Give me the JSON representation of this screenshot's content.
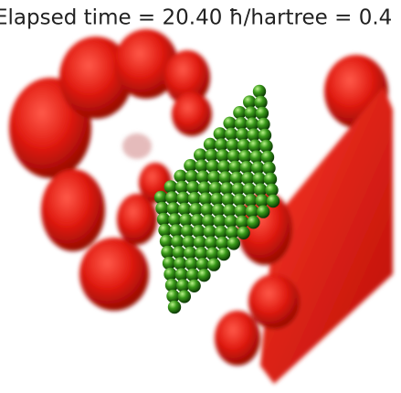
{
  "title": "Elapsed time = 20.40 ħ/hartree = 0.4"
}
